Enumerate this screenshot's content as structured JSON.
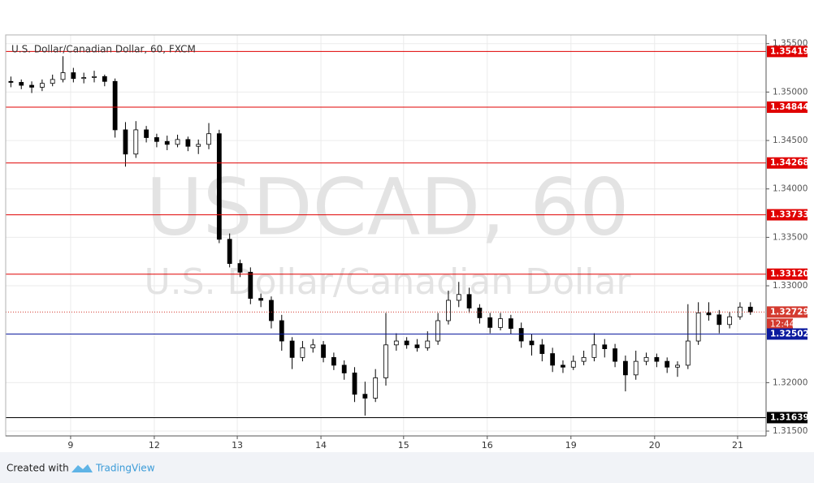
{
  "chart_data": {
    "type": "candlestick",
    "title": "U.S. Dollar/Canadian Dollar, 60, FXCM",
    "watermark": "USDCAD, 60",
    "watermark_subtitle": "U.S. Dollar/Canadian Dollar",
    "up_color": "#ffffff",
    "down_color": "#000000",
    "grid": true,
    "xlim": [
      0,
      219
    ],
    "ylim": [
      1.3145,
      1.3559
    ],
    "xticks": [
      {
        "value": 18.7,
        "label": "9"
      },
      {
        "value": 42.8,
        "label": "12"
      },
      {
        "value": 66.7,
        "label": "13"
      },
      {
        "value": 90.8,
        "label": "14"
      },
      {
        "value": 114.6,
        "label": "15"
      },
      {
        "value": 138.7,
        "label": "16"
      },
      {
        "value": 162.8,
        "label": "19"
      },
      {
        "value": 186.9,
        "label": "20"
      },
      {
        "value": 210.8,
        "label": "21"
      }
    ],
    "yticks": [
      {
        "value": 1.355,
        "label": "1.35500"
      },
      {
        "value": 1.35,
        "label": "1.35000"
      },
      {
        "value": 1.345,
        "label": "1.34500"
      },
      {
        "value": 1.34,
        "label": "1.34000"
      },
      {
        "value": 1.335,
        "label": "1.33500"
      },
      {
        "value": 1.33,
        "label": "1.33000"
      },
      {
        "value": 1.32,
        "label": "1.32000"
      },
      {
        "value": 1.315,
        "label": "1.31500"
      }
    ],
    "x": [
      1.5,
      4.5,
      7.5,
      10.5,
      13.5,
      16.5,
      19.5,
      22.5,
      25.5,
      28.5,
      31.5,
      34.5,
      37.5,
      40.5,
      43.5,
      46.5,
      49.5,
      52.5,
      55.5,
      58.5,
      61.5,
      64.5,
      67.5,
      70.5,
      73.5,
      76.5,
      79.5,
      82.5,
      85.5,
      88.5,
      91.5,
      94.5,
      97.5,
      100.5,
      103.5,
      106.5,
      109.5,
      112.5,
      115.5,
      118.5,
      121.5,
      124.5,
      127.5,
      130.5,
      133.5,
      136.5,
      139.5,
      142.5,
      145.5,
      148.5,
      151.5,
      154.5,
      157.5,
      160.5,
      163.5,
      166.5,
      169.5,
      172.5,
      175.5,
      178.5,
      181.5,
      184.5,
      187.5,
      190.5,
      193.5,
      196.5,
      199.5,
      202.5,
      205.5,
      208.5,
      211.5,
      214.5
    ],
    "open": [
      1.3511,
      1.351,
      1.3507,
      1.3505,
      1.3509,
      1.3513,
      1.352,
      1.3514,
      1.3515,
      1.3516,
      1.3511,
      1.3461,
      1.3436,
      1.3461,
      1.3453,
      1.3449,
      1.3446,
      1.3451,
      1.3444,
      1.3446,
      1.3457,
      1.3348,
      1.3323,
      1.3314,
      1.3287,
      1.3285,
      1.3264,
      1.3243,
      1.3226,
      1.3236,
      1.3239,
      1.3226,
      1.3218,
      1.321,
      1.3188,
      1.3184,
      1.3205,
      1.3239,
      1.3243,
      1.3239,
      1.3236,
      1.3243,
      1.3264,
      1.3285,
      1.3291,
      1.3277,
      1.3267,
      1.3257,
      1.3266,
      1.3256,
      1.3243,
      1.3239,
      1.323,
      1.3218,
      1.3216,
      1.3222,
      1.3226,
      1.3239,
      1.3235,
      1.3222,
      1.3208,
      1.3222,
      1.3226,
      1.3222,
      1.3216,
      1.3218,
      1.3243,
      1.3272,
      1.327,
      1.326,
      1.3268,
      1.3278
    ],
    "high": [
      1.3516,
      1.3513,
      1.3511,
      1.3513,
      1.3518,
      1.3537,
      1.3525,
      1.352,
      1.3522,
      1.3518,
      1.3514,
      1.3469,
      1.347,
      1.3465,
      1.3457,
      1.3455,
      1.3456,
      1.3454,
      1.3451,
      1.3468,
      1.3461,
      1.3354,
      1.3327,
      1.3319,
      1.3292,
      1.3289,
      1.327,
      1.3247,
      1.3243,
      1.3245,
      1.3243,
      1.3231,
      1.3223,
      1.3216,
      1.3201,
      1.3214,
      1.3272,
      1.3251,
      1.3247,
      1.3245,
      1.3253,
      1.3272,
      1.3295,
      1.3304,
      1.3298,
      1.3281,
      1.3272,
      1.3272,
      1.327,
      1.3262,
      1.325,
      1.3245,
      1.3236,
      1.3223,
      1.3228,
      1.3233,
      1.3251,
      1.3245,
      1.324,
      1.3228,
      1.3233,
      1.3231,
      1.323,
      1.3226,
      1.3222,
      1.3281,
      1.3283,
      1.3283,
      1.3275,
      1.3273,
      1.3283,
      1.3283
    ],
    "low": [
      1.3505,
      1.3503,
      1.3499,
      1.3501,
      1.3506,
      1.351,
      1.351,
      1.3509,
      1.351,
      1.3506,
      1.3453,
      1.3423,
      1.3432,
      1.3448,
      1.3443,
      1.344,
      1.3443,
      1.3439,
      1.3436,
      1.3441,
      1.3344,
      1.3319,
      1.3309,
      1.3281,
      1.3278,
      1.3256,
      1.3233,
      1.3214,
      1.3222,
      1.3231,
      1.3221,
      1.3213,
      1.3203,
      1.318,
      1.3166,
      1.318,
      1.3197,
      1.3233,
      1.3235,
      1.3232,
      1.3233,
      1.3239,
      1.326,
      1.3278,
      1.3272,
      1.3261,
      1.3251,
      1.3254,
      1.325,
      1.3236,
      1.3228,
      1.3222,
      1.3211,
      1.321,
      1.3213,
      1.3218,
      1.3222,
      1.3226,
      1.3216,
      1.3191,
      1.3203,
      1.3218,
      1.3216,
      1.321,
      1.3206,
      1.3214,
      1.3239,
      1.3264,
      1.3251,
      1.3256,
      1.3265,
      1.327
    ],
    "close": [
      1.351,
      1.3507,
      1.3505,
      1.3509,
      1.3513,
      1.352,
      1.3514,
      1.3515,
      1.3516,
      1.3511,
      1.3461,
      1.3436,
      1.3461,
      1.3453,
      1.3449,
      1.3446,
      1.3451,
      1.3444,
      1.3446,
      1.3457,
      1.3348,
      1.3323,
      1.3314,
      1.3287,
      1.3285,
      1.3264,
      1.3243,
      1.3226,
      1.3236,
      1.3239,
      1.3226,
      1.3218,
      1.321,
      1.3188,
      1.3184,
      1.3205,
      1.3239,
      1.3243,
      1.3239,
      1.3236,
      1.3243,
      1.3264,
      1.3285,
      1.3291,
      1.3277,
      1.3267,
      1.3257,
      1.3266,
      1.3256,
      1.3243,
      1.3239,
      1.323,
      1.3218,
      1.3216,
      1.3222,
      1.3226,
      1.3239,
      1.3235,
      1.3222,
      1.3208,
      1.3222,
      1.3226,
      1.3222,
      1.3216,
      1.3218,
      1.3243,
      1.3272,
      1.327,
      1.326,
      1.3268,
      1.3278,
      1.3273
    ],
    "levels": [
      {
        "price": 1.35419,
        "color": "#e00000"
      },
      {
        "price": 1.34844,
        "color": "#e00000"
      },
      {
        "price": 1.34268,
        "color": "#e00000"
      },
      {
        "price": 1.33733,
        "color": "#e00000"
      },
      {
        "price": {
          "value": 1.3312,
          "label": "1.33120"
        },
        "color": "#e00000"
      },
      {
        "price": 1.32729,
        "color": "#d43a2f",
        "dotted": true,
        "countdown": "12:44"
      },
      {
        "price": 1.32502,
        "color": "#0b1a9e"
      },
      {
        "price": 1.31639,
        "color": "#000000"
      }
    ]
  },
  "footer": {
    "created_with": "Created with",
    "brand": "TradingView"
  }
}
